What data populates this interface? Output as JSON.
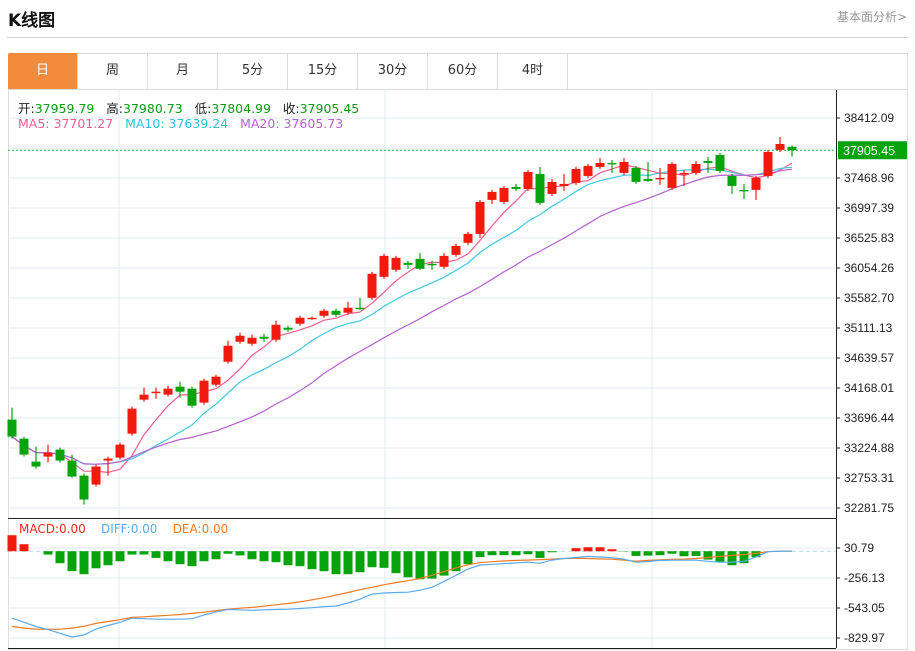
{
  "header": {
    "title": "K线图",
    "link": "基本面分析>"
  },
  "tabs": [
    "日",
    "周",
    "月",
    "5分",
    "15分",
    "30分",
    "60分",
    "4时"
  ],
  "active_tab": 0,
  "ohlc": {
    "open_label": "开:",
    "open": "37959.79",
    "high_label": "高:",
    "high": "37980.73",
    "low_label": "低:",
    "low": "37804.99",
    "close_label": "收:",
    "close": "37905.45"
  },
  "ma": {
    "ma5_label": "MA5:",
    "ma5": "37701.27",
    "ma10_label": "MA10:",
    "ma10": "37639.24",
    "ma20_label": "MA20:",
    "ma20": "37605.73"
  },
  "macd_legend": {
    "macd_label": "MACD:",
    "macd": "0.00",
    "diff_label": "DIFF:",
    "diff": "0.00",
    "dea_label": "DEA:",
    "dea": "0.00"
  },
  "current_price": "37905.45",
  "colors": {
    "up": "#f21a0c",
    "down": "#06a30c",
    "ma5": "#ee5d8f",
    "ma10": "#3fc8df",
    "ma20": "#b561cf",
    "diff": "#5aaaf0",
    "dea": "#f07b22",
    "accent": "#f28b3c"
  },
  "chart_data": {
    "type": "candlestick",
    "price_axis": {
      "ticks": [
        "38412.09",
        "37468.96",
        "36997.39",
        "36525.83",
        "36054.26",
        "35582.70",
        "35111.13",
        "34639.57",
        "34168.01",
        "33696.44",
        "33224.88",
        "32753.31",
        "32281.75"
      ],
      "max": 38412.09,
      "min": 32281.75
    },
    "macd_axis": {
      "ticks": [
        "30.79",
        "-256.13",
        "-543.05",
        "-829.97"
      ],
      "max": 30.79,
      "min": -829.97
    },
    "candles": [
      [
        33671,
        33859,
        33372,
        33404
      ],
      [
        33372,
        33404,
        33090,
        33121
      ],
      [
        33011,
        33247,
        32901,
        32933
      ],
      [
        33090,
        33278,
        32996,
        33152
      ],
      [
        33200,
        33231,
        32996,
        33027
      ],
      [
        33027,
        33121,
        32760,
        32776
      ],
      [
        32791,
        32823,
        32336,
        32415
      ],
      [
        32650,
        32964,
        32619,
        32933
      ],
      [
        33027,
        33090,
        32791,
        33058
      ],
      [
        33074,
        33310,
        33043,
        33278
      ],
      [
        33451,
        33875,
        33419,
        33843
      ],
      [
        33985,
        34173,
        33953,
        34063
      ],
      [
        34095,
        34173,
        34000,
        34110
      ],
      [
        34063,
        34204,
        34032,
        34157
      ],
      [
        34189,
        34267,
        34016,
        34110
      ],
      [
        34157,
        34189,
        33859,
        33890
      ],
      [
        33938,
        34314,
        33906,
        34283
      ],
      [
        34220,
        34377,
        34189,
        34346
      ],
      [
        34581,
        34911,
        34550,
        34832
      ],
      [
        34895,
        35036,
        34864,
        34989
      ],
      [
        34864,
        35005,
        34832,
        34958
      ],
      [
        34974,
        35021,
        34895,
        34942
      ],
      [
        34927,
        35225,
        34895,
        35162
      ],
      [
        35115,
        35146,
        35052,
        35084
      ],
      [
        35178,
        35303,
        35146,
        35272
      ],
      [
        35256,
        35288,
        35241,
        35272
      ],
      [
        35303,
        35413,
        35272,
        35382
      ],
      [
        35382,
        35413,
        35288,
        35319
      ],
      [
        35351,
        35523,
        35319,
        35429
      ],
      [
        35429,
        35586,
        35398,
        35413
      ],
      [
        35586,
        35994,
        35555,
        35963
      ],
      [
        35916,
        36277,
        35884,
        36245
      ],
      [
        36026,
        36245,
        35994,
        36214
      ],
      [
        36136,
        36167,
        36041,
        36104
      ],
      [
        36198,
        36292,
        36026,
        36041
      ],
      [
        36120,
        36167,
        36026,
        36104
      ],
      [
        36073,
        36292,
        36041,
        36245
      ],
      [
        36261,
        36434,
        36229,
        36402
      ],
      [
        36450,
        36622,
        36418,
        36591
      ],
      [
        36591,
        37124,
        36528,
        37093
      ],
      [
        37125,
        37281,
        37062,
        37250
      ],
      [
        37093,
        37344,
        37062,
        37313
      ],
      [
        37329,
        37376,
        37266,
        37297
      ],
      [
        37297,
        37596,
        37266,
        37564
      ],
      [
        37533,
        37643,
        37046,
        37078
      ],
      [
        37219,
        37454,
        37187,
        37407
      ],
      [
        37344,
        37533,
        37266,
        37376
      ],
      [
        37392,
        37643,
        37360,
        37611
      ],
      [
        37501,
        37690,
        37470,
        37658
      ],
      [
        37643,
        37784,
        37611,
        37706
      ],
      [
        37706,
        37753,
        37549,
        37690
      ],
      [
        37549,
        37784,
        37517,
        37721
      ],
      [
        37627,
        37659,
        37376,
        37407
      ],
      [
        37454,
        37721,
        37407,
        37423
      ],
      [
        37454,
        37627,
        37360,
        37470
      ],
      [
        37313,
        37721,
        37282,
        37690
      ],
      [
        37533,
        37596,
        37344,
        37549
      ],
      [
        37549,
        37737,
        37517,
        37690
      ],
      [
        37737,
        37800,
        37549,
        37706
      ],
      [
        37831,
        37863,
        37549,
        37580
      ],
      [
        37501,
        37533,
        37219,
        37344
      ],
      [
        37282,
        37376,
        37140,
        37266
      ],
      [
        37282,
        37501,
        37125,
        37470
      ],
      [
        37501,
        37910,
        37470,
        37878
      ],
      [
        37910,
        38114,
        37878,
        38004
      ],
      [
        37959.79,
        37980.73,
        37804.99,
        37905.45
      ]
    ],
    "macd_hist": [
      153,
      67,
      0,
      -32,
      -115,
      -191,
      -220,
      -163,
      -134,
      -96,
      -32,
      -32,
      -64,
      -96,
      -124,
      -143,
      -96,
      -77,
      -24,
      -40,
      -77,
      -96,
      -105,
      -134,
      -143,
      -172,
      -191,
      -220,
      -220,
      -201,
      -153,
      -159,
      -210,
      -249,
      -268,
      -262,
      -233,
      -191,
      -124,
      -57,
      -38,
      -38,
      -38,
      -29,
      -64,
      -10,
      0,
      29,
      38,
      38,
      19,
      -3,
      -45,
      -42,
      -38,
      -24,
      -48,
      -45,
      -80,
      -105,
      -134,
      -115,
      -57,
      0,
      0,
      0
    ],
    "diff": [
      -640,
      -680,
      -720,
      -750,
      -785,
      -820,
      -800,
      -745,
      -710,
      -680,
      -641,
      -645,
      -650,
      -650,
      -650,
      -645,
      -610,
      -580,
      -557,
      -560,
      -565,
      -560,
      -557,
      -555,
      -548,
      -540,
      -530,
      -524,
      -495,
      -459,
      -410,
      -400,
      -395,
      -392,
      -373,
      -345,
      -290,
      -230,
      -170,
      -132,
      -125,
      -118,
      -112,
      -105,
      -115,
      -85,
      -70,
      -60,
      -50,
      -55,
      -62,
      -75,
      -105,
      -98,
      -88,
      -86,
      -86,
      -86,
      -96,
      -105,
      -104,
      -96,
      -55,
      -5,
      0,
      0
    ],
    "dea": [
      -720,
      -735,
      -745,
      -746,
      -746,
      -735,
      -718,
      -690,
      -672,
      -655,
      -633,
      -627,
      -620,
      -613,
      -605,
      -595,
      -583,
      -568,
      -555,
      -545,
      -537,
      -525,
      -512,
      -500,
      -485,
      -465,
      -445,
      -420,
      -395,
      -368,
      -345,
      -320,
      -300,
      -282,
      -262,
      -230,
      -195,
      -160,
      -130,
      -110,
      -100,
      -93,
      -88,
      -85,
      -80,
      -75,
      -70,
      -68,
      -70,
      -73,
      -76,
      -85,
      -95,
      -88,
      -82,
      -78,
      -75,
      -70,
      -60,
      -50,
      -40,
      -32,
      -20,
      -5,
      0,
      0
    ]
  }
}
